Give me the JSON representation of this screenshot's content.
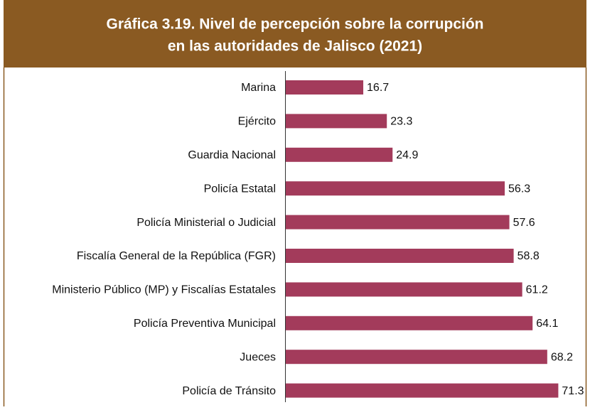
{
  "chart_data": {
    "type": "bar",
    "orientation": "horizontal",
    "title": [
      "Gráfica 3.19. Nivel de percepción sobre la corrupción",
      "en las autoridades de Jalisco (2021)"
    ],
    "categories": [
      "Marina",
      "Ejército",
      "Guardia Nacional",
      "Policía Estatal",
      "Policía Ministerial o Judicial",
      "Fiscalía General de la República (FGR)",
      "Ministerio Público (MP) y Fiscalías Estatales",
      "Policía Preventiva Municipal",
      "Jueces",
      "Policía de Tránsito"
    ],
    "values": [
      16.7,
      23.3,
      24.9,
      56.3,
      57.6,
      58.8,
      61.2,
      64.1,
      68.2,
      71.3
    ],
    "color": "#a33b5b",
    "xlim": [
      -5,
      75
    ]
  }
}
